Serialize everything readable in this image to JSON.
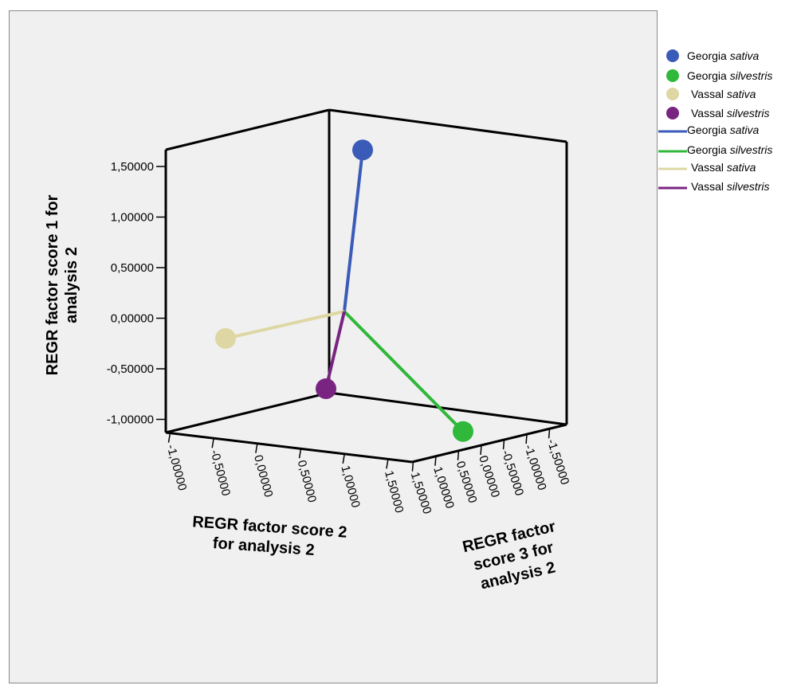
{
  "chart_data": {
    "type": "scatter",
    "subtype": "3d-scatter-with-drop-lines",
    "title": "",
    "axes": {
      "y": {
        "label_lines": [
          "REGR factor score   1 for",
          "analysis 2"
        ],
        "ticks": [
          "1,50000",
          "1,00000",
          "0,50000",
          "0,00000",
          "-0,50000",
          "-1,00000"
        ],
        "range": [
          -1.0,
          1.5
        ]
      },
      "x": {
        "label_lines": [
          "REGR factor score   2",
          "for analysis 2"
        ],
        "ticks": [
          "-1,00000",
          "-0,50000",
          "0,00000",
          "0,50000",
          "1,00000",
          "1,50000"
        ],
        "range": [
          -1.0,
          1.5
        ]
      },
      "z": {
        "label_lines": [
          "REGR factor",
          "score   3 for",
          "analysis 2"
        ],
        "ticks": [
          "1,50000",
          "1,00000",
          "0,50000",
          "0,00000",
          "-0,50000",
          "-1,00000",
          "-1,50000"
        ],
        "range": [
          -1.5,
          1.5
        ]
      }
    },
    "series": [
      {
        "name_main": "Georgia",
        "name_italic": "sativa",
        "color": "#3a5bb8",
        "y": 1.6
      },
      {
        "name_main": "Georgia",
        "name_italic": "silvestris",
        "color": "#2fb83a",
        "y": -0.6
      },
      {
        "name_main": "Vassal",
        "name_italic": "sativa",
        "color": "#ded7a4",
        "y": -0.2
      },
      {
        "name_main": "Vassal",
        "name_italic": "silvestris",
        "color": "#7a2482",
        "y": -0.35
      }
    ],
    "centroid": {
      "y": 0.07
    },
    "legend": {
      "position": "right"
    }
  }
}
